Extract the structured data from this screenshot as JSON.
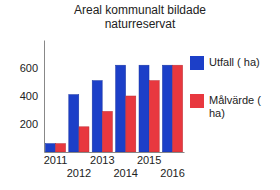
{
  "chart_data": {
    "type": "bar",
    "title": "Areal kommunalt bildade naturreservat",
    "categories": [
      "2011",
      "2012",
      "2013",
      "2014",
      "2015",
      "2016"
    ],
    "series": [
      {
        "name": "Utfall ( ha)",
        "color": "#1c3fc8",
        "values": [
          60,
          410,
          510,
          620,
          620,
          620
        ]
      },
      {
        "name": "Målvärde ( ha)",
        "color": "#e8383f",
        "values": [
          60,
          180,
          290,
          400,
          510,
          620
        ]
      }
    ],
    "ylim": [
      0,
      800
    ],
    "yticks": [
      200,
      400,
      600
    ],
    "grid": false,
    "legend": "right"
  }
}
